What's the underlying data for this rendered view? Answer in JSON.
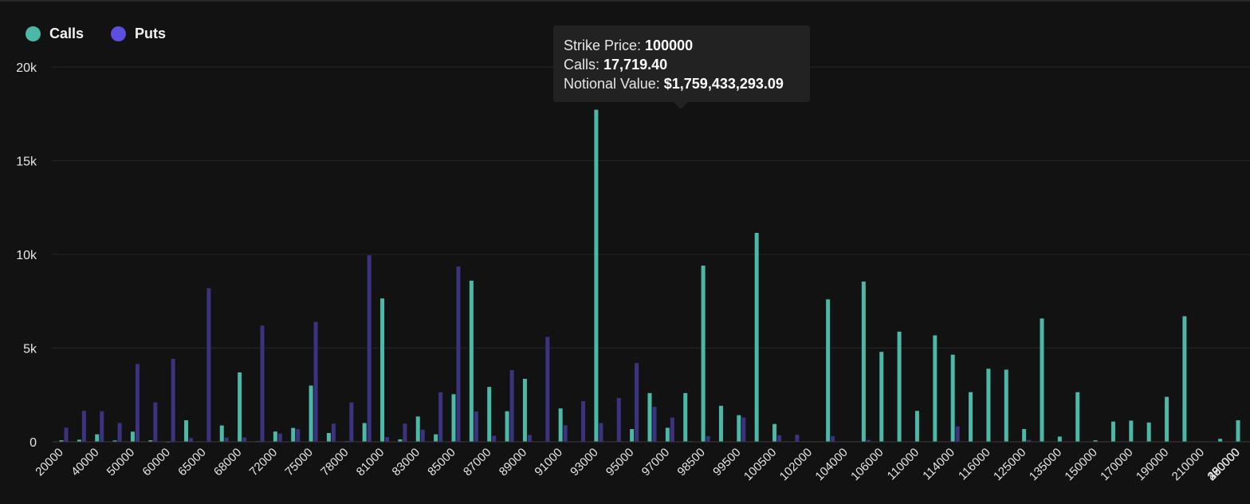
{
  "legend": {
    "calls_label": "Calls",
    "puts_label": "Puts"
  },
  "colors": {
    "calls": "#4cb8a7",
    "puts": "#5c4ee0",
    "puts_bar": "#3b3380",
    "background": "#121212"
  },
  "tooltip": {
    "strike_label": "Strike Price:",
    "strike_value": "100000",
    "calls_label": "Calls:",
    "calls_value": "17,719.40",
    "notional_label": "Notional Value:",
    "notional_value": "$1,759,433,293.09"
  },
  "chart_data": {
    "type": "bar",
    "title": "",
    "xlabel": "",
    "ylabel": "",
    "ylim": [
      0,
      20000
    ],
    "yticks": [
      {
        "value": 0,
        "label": "0"
      },
      {
        "value": 5000,
        "label": "5k"
      },
      {
        "value": 10000,
        "label": "10k"
      },
      {
        "value": 15000,
        "label": "15k"
      },
      {
        "value": 20000,
        "label": "20k"
      }
    ],
    "grid": true,
    "legend_position": "top-left",
    "category_labels": [
      "20000",
      "40000",
      "50000",
      "60000",
      "65000",
      "68000",
      "72000",
      "75000",
      "78000",
      "81000",
      "83000",
      "85000",
      "87000",
      "89000",
      "91000",
      "93000",
      "95000",
      "97000",
      "98500",
      "99500",
      "100500",
      "102000",
      "104000",
      "106000",
      "110000",
      "114000",
      "116000",
      "125000",
      "135000",
      "150000",
      "170000",
      "190000",
      "210000",
      "230000",
      "250000",
      "280000",
      "320000",
      "400000"
    ],
    "series": [
      {
        "name": "Calls",
        "values": [
          80,
          110,
          400,
          70,
          540,
          80,
          10,
          1150,
          20,
          870,
          3700,
          30,
          550,
          740,
          3000,
          470,
          30,
          1000,
          7650,
          130,
          1350,
          400,
          2540,
          8600,
          2930,
          1630,
          3360,
          20,
          1780,
          20,
          17719.4,
          20,
          680,
          2600,
          750,
          2600,
          9400,
          1920,
          1420,
          11150,
          950,
          20,
          20,
          7600,
          20,
          8550,
          4800,
          5880,
          1650,
          5680,
          4650,
          2650,
          3900,
          3850,
          680,
          6580,
          280,
          2650,
          80,
          1080,
          1130,
          1030,
          2400,
          6700,
          20,
          160,
          1150
        ]
      },
      {
        "name": "Puts",
        "values": [
          750,
          1650,
          1630,
          1000,
          4150,
          2100,
          4430,
          200,
          8200,
          230,
          230,
          6200,
          440,
          670,
          6400,
          970,
          2100,
          9950,
          250,
          970,
          650,
          2650,
          9350,
          1620,
          330,
          3820,
          370,
          5600,
          880,
          2170,
          1000,
          2340,
          4200,
          1870,
          1290,
          40,
          300,
          20,
          1300,
          20,
          350,
          380,
          20,
          300,
          20,
          100,
          20,
          20,
          20,
          20,
          820,
          20,
          20,
          20,
          100,
          20,
          20,
          20,
          20,
          20,
          20,
          20,
          20,
          20,
          20,
          20,
          20
        ]
      }
    ]
  }
}
